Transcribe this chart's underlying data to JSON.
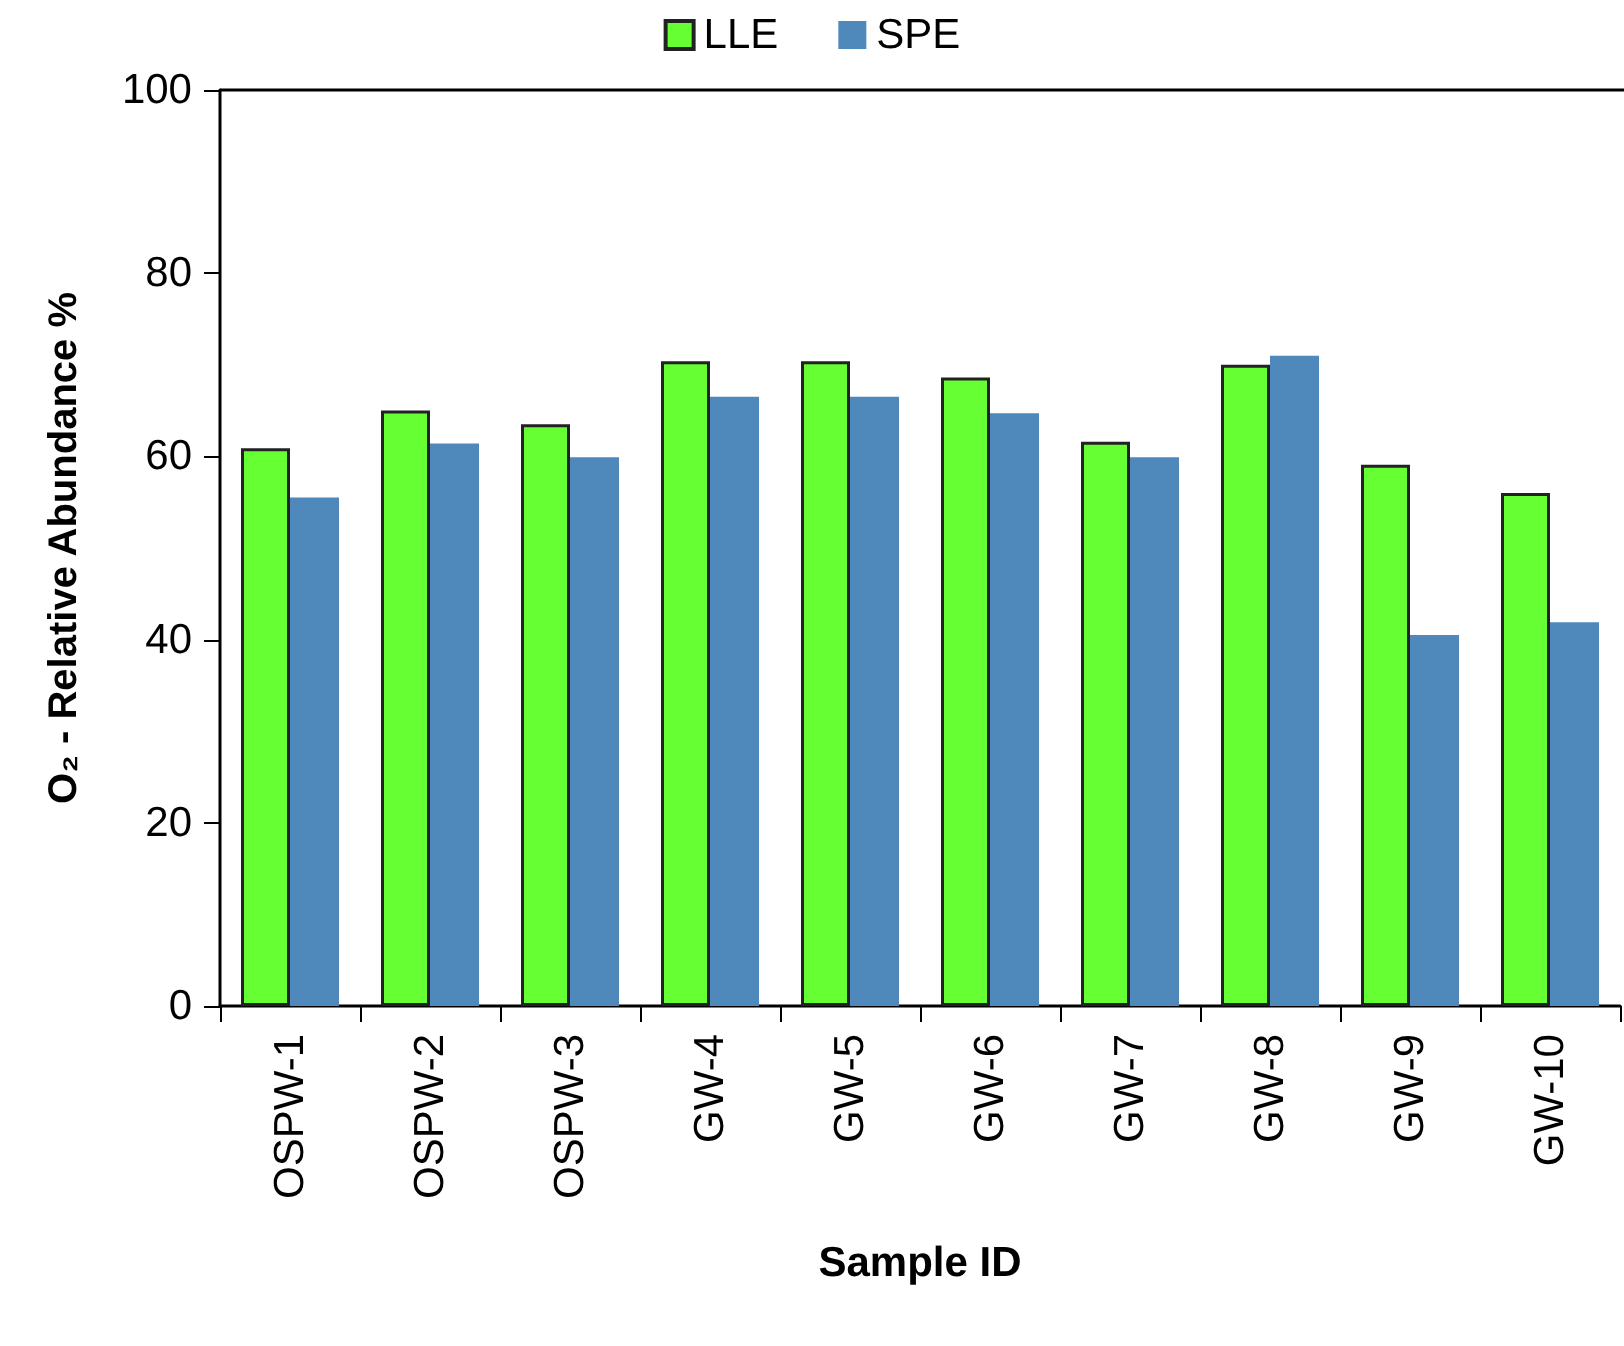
{
  "chart_data": {
    "type": "bar",
    "xlabel": "Sample ID",
    "ylabel": "O₂ - Relative Abundance %",
    "categories": [
      "OSPW-1",
      "OSPW-2",
      "OSPW-3",
      "GW-4",
      "GW-5",
      "GW-6",
      "GW-7",
      "GW-8",
      "GW-9",
      "GW-10"
    ],
    "series": [
      {
        "name": "LLE",
        "color": "#66ff33",
        "values": [
          60.9,
          65.0,
          63.5,
          70.4,
          70.4,
          68.6,
          61.6,
          70.0,
          59.1,
          56.0
        ]
      },
      {
        "name": "SPE",
        "color": "#4f88bb",
        "values": [
          55.5,
          61.4,
          59.9,
          66.5,
          66.5,
          64.7,
          59.9,
          71.0,
          40.5,
          41.9
        ]
      }
    ],
    "ylim": [
      0,
      100
    ],
    "yticks": [
      0,
      20,
      40,
      60,
      80,
      100
    ],
    "grid": false,
    "legend": "top"
  }
}
